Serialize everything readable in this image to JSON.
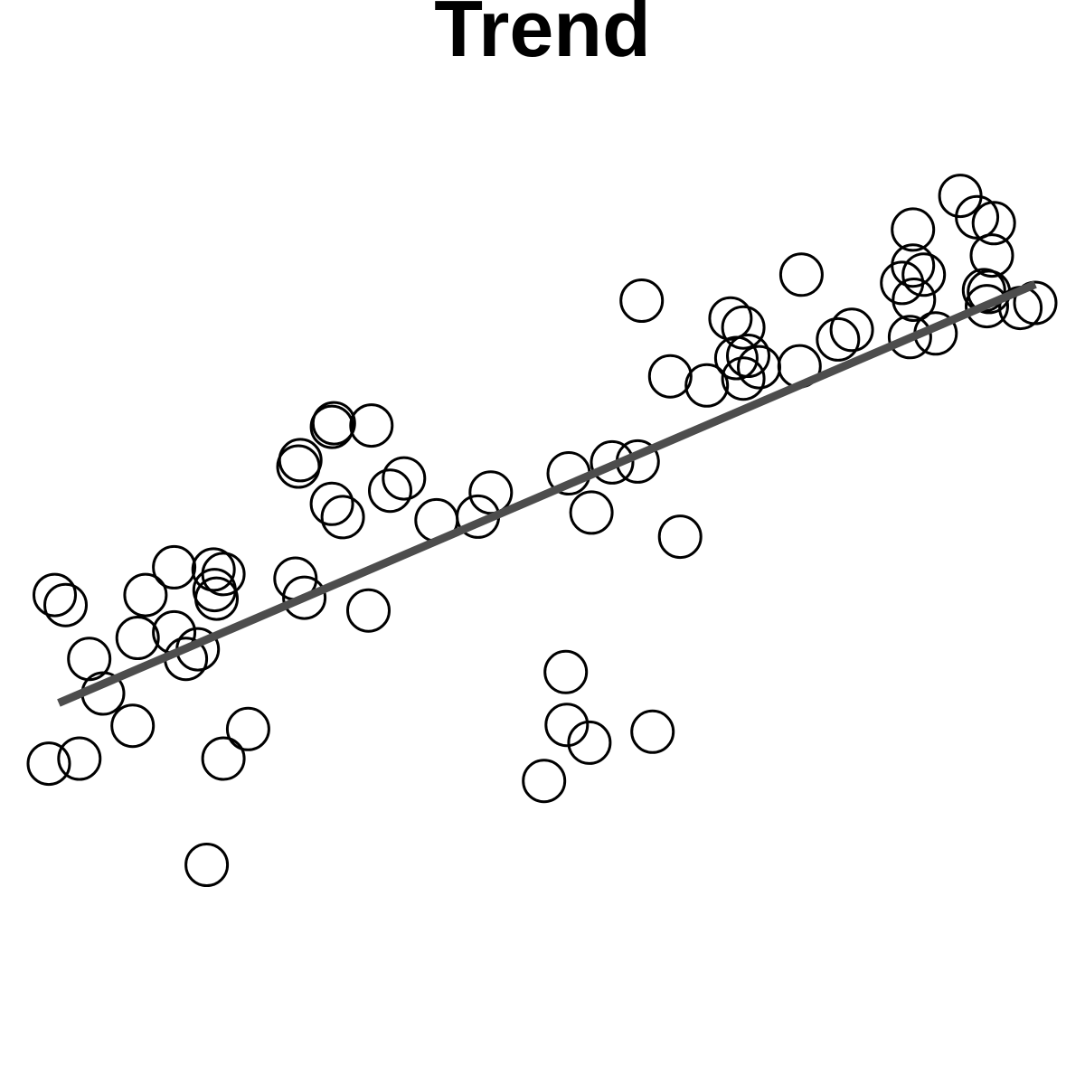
{
  "chart_data": {
    "type": "scatter",
    "title": "Trend",
    "xlabel": "",
    "ylabel": "",
    "axes_visible": false,
    "grid": false,
    "xlim": [
      0,
      1
    ],
    "ylim": [
      -1,
      1
    ],
    "marker": "open-circle",
    "colors": {
      "points": "#000000",
      "trend": "#4d4d4d"
    },
    "points": [
      {
        "x": 0.0,
        "y": -0.394
      },
      {
        "x": 0.031,
        "y": -0.383
      },
      {
        "x": 0.006,
        "y": -0.024
      },
      {
        "x": 0.017,
        "y": -0.046
      },
      {
        "x": 0.041,
        "y": -0.164
      },
      {
        "x": 0.055,
        "y": -0.24
      },
      {
        "x": 0.085,
        "y": -0.311
      },
      {
        "x": 0.09,
        "y": -0.118
      },
      {
        "x": 0.098,
        "y": -0.024
      },
      {
        "x": 0.127,
        "y": 0.037
      },
      {
        "x": 0.127,
        "y": -0.106
      },
      {
        "x": 0.139,
        "y": -0.164
      },
      {
        "x": 0.151,
        "y": -0.143
      },
      {
        "x": 0.167,
        "y": 0.032
      },
      {
        "x": 0.177,
        "y": 0.022
      },
      {
        "x": 0.168,
        "y": -0.013
      },
      {
        "x": 0.17,
        "y": -0.032
      },
      {
        "x": 0.16,
        "y": -0.616
      },
      {
        "x": 0.177,
        "y": -0.383
      },
      {
        "x": 0.202,
        "y": -0.318
      },
      {
        "x": 0.25,
        "y": 0.012
      },
      {
        "x": 0.259,
        "y": -0.03
      },
      {
        "x": 0.255,
        "y": 0.272
      },
      {
        "x": 0.253,
        "y": 0.258
      },
      {
        "x": 0.287,
        "y": 0.345
      },
      {
        "x": 0.289,
        "y": 0.353
      },
      {
        "x": 0.327,
        "y": 0.348
      },
      {
        "x": 0.287,
        "y": 0.176
      },
      {
        "x": 0.298,
        "y": 0.147
      },
      {
        "x": 0.324,
        "y": -0.058
      },
      {
        "x": 0.36,
        "y": 0.232
      },
      {
        "x": 0.346,
        "y": 0.205
      },
      {
        "x": 0.393,
        "y": 0.14
      },
      {
        "x": 0.435,
        "y": 0.148
      },
      {
        "x": 0.448,
        "y": 0.201
      },
      {
        "x": 0.527,
        "y": 0.243
      },
      {
        "x": 0.55,
        "y": 0.157
      },
      {
        "x": 0.571,
        "y": 0.267
      },
      {
        "x": 0.597,
        "y": 0.269
      },
      {
        "x": 0.601,
        "y": 0.622
      },
      {
        "x": 0.64,
        "y": 0.104
      },
      {
        "x": 0.524,
        "y": -0.193
      },
      {
        "x": 0.525,
        "y": -0.309
      },
      {
        "x": 0.548,
        "y": -0.348
      },
      {
        "x": 0.502,
        "y": -0.432
      },
      {
        "x": 0.612,
        "y": -0.324
      },
      {
        "x": 0.63,
        "y": 0.456
      },
      {
        "x": 0.667,
        "y": 0.436
      },
      {
        "x": 0.691,
        "y": 0.583
      },
      {
        "x": 0.704,
        "y": 0.563
      },
      {
        "x": 0.697,
        "y": 0.496
      },
      {
        "x": 0.709,
        "y": 0.501
      },
      {
        "x": 0.72,
        "y": 0.476
      },
      {
        "x": 0.704,
        "y": 0.451
      },
      {
        "x": 0.761,
        "y": 0.478
      },
      {
        "x": 0.763,
        "y": 0.679
      },
      {
        "x": 0.8,
        "y": 0.537
      },
      {
        "x": 0.814,
        "y": 0.558
      },
      {
        "x": 0.865,
        "y": 0.661
      },
      {
        "x": 0.876,
        "y": 0.699
      },
      {
        "x": 0.876,
        "y": 0.778
      },
      {
        "x": 0.887,
        "y": 0.679
      },
      {
        "x": 0.877,
        "y": 0.624
      },
      {
        "x": 0.873,
        "y": 0.542
      },
      {
        "x": 0.899,
        "y": 0.55
      },
      {
        "x": 0.924,
        "y": 0.852
      },
      {
        "x": 0.941,
        "y": 0.805
      },
      {
        "x": 0.958,
        "y": 0.792
      },
      {
        "x": 0.956,
        "y": 0.721
      },
      {
        "x": 0.948,
        "y": 0.645
      },
      {
        "x": 0.953,
        "y": 0.641
      },
      {
        "x": 0.951,
        "y": 0.61
      },
      {
        "x": 0.985,
        "y": 0.606
      },
      {
        "x": 1.0,
        "y": 0.617
      }
    ],
    "trend_line": {
      "x": [
        0.01,
        1.0
      ],
      "y": [
        -0.261,
        0.658
      ]
    }
  }
}
